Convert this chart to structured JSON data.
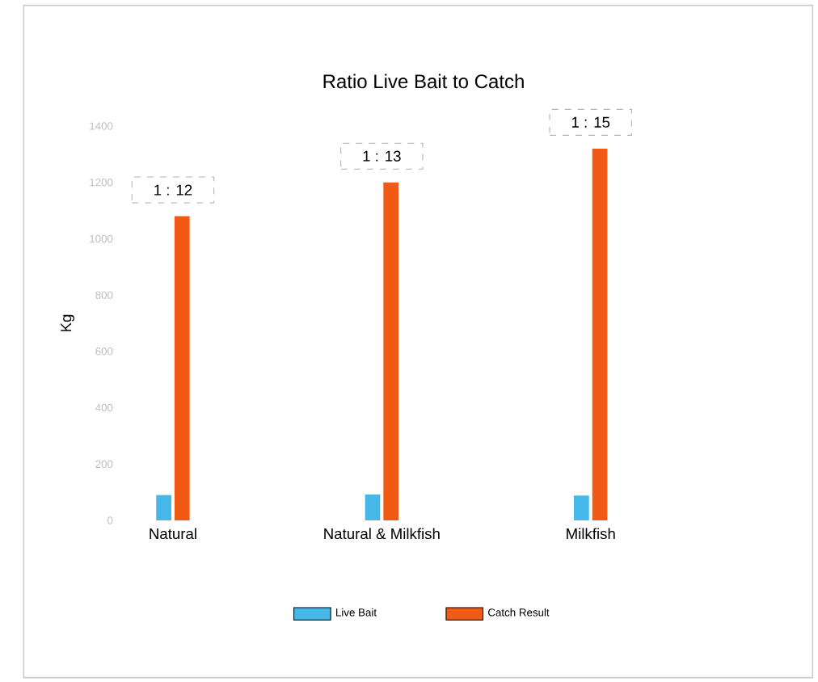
{
  "chart_data": {
    "type": "bar",
    "title": "Ratio Live Bait  to Catch",
    "ylabel": "Kg",
    "categories": [
      "Natural",
      "Natural & Milkfish",
      "Milkfish"
    ],
    "series": [
      {
        "name": "Live Bait",
        "color": "#45b7e8",
        "values": [
          90,
          92,
          88
        ]
      },
      {
        "name": "Catch Result",
        "color": "#f05a14",
        "values": [
          1080,
          1200,
          1320
        ]
      }
    ],
    "ylim": [
      0,
      1400
    ],
    "yticks": [
      0,
      200,
      400,
      600,
      800,
      1000,
      1200,
      1400
    ],
    "annotations": [
      {
        "text": "1 : 12",
        "x": "Natural",
        "y": 1080
      },
      {
        "text": "1 : 13",
        "x": "Natural & Milkfish",
        "y": 1200
      },
      {
        "text": "1 : 15",
        "x": "Milkfish",
        "y": 1320
      }
    ],
    "legend": "bottom"
  }
}
